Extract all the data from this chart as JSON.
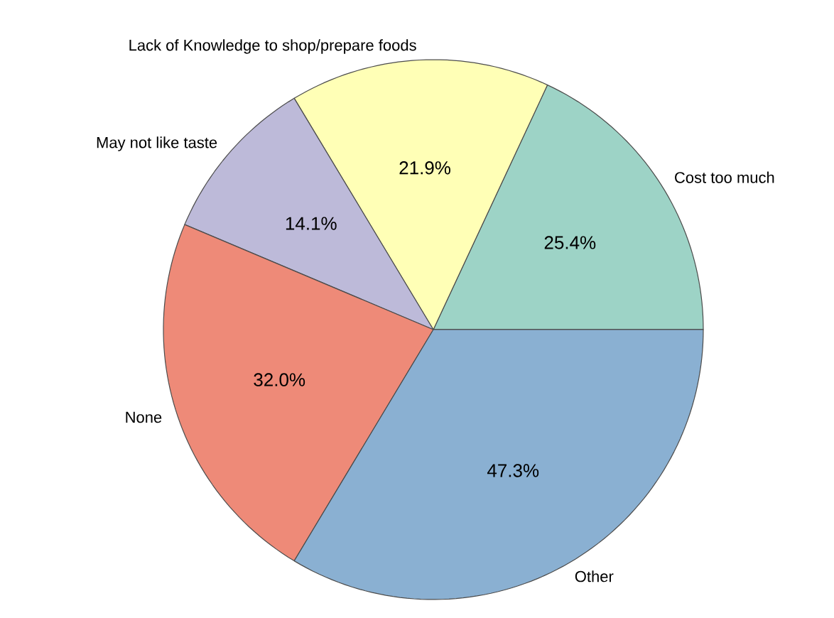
{
  "chart_data": {
    "type": "pie",
    "categories": [
      "Cost too much",
      "Lack of Knowledge to shop/prepare foods",
      "May not like taste",
      "None",
      "Other"
    ],
    "values": [
      25.4,
      21.9,
      14.1,
      32.0,
      47.3
    ],
    "value_labels": [
      "25.4%",
      "21.9%",
      "14.1%",
      "32.0%",
      "47.3%"
    ],
    "colors": [
      "#9dd3c6",
      "#ffffb6",
      "#bdbad9",
      "#ee8a78",
      "#8ab0d2"
    ]
  }
}
